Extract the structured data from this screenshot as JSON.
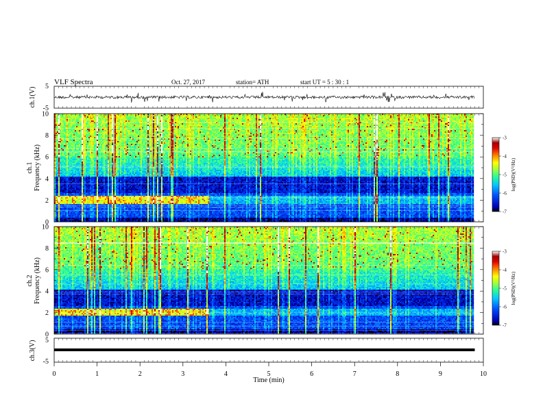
{
  "header": {
    "title": "VLF  Spectra",
    "date": "Oct. 27, 2017",
    "station": "station= ATH",
    "start": "start  UT  =   5  : 30 : 1"
  },
  "panels": {
    "ch1_wave": {
      "ylabel": "ch.1(V)",
      "yticks": [
        "5",
        "-5"
      ]
    },
    "ch1_spec": {
      "ylabel_line1": "ch.1",
      "ylabel_line2": "Frequency  (kHz)",
      "yticks": [
        "0",
        "2",
        "4",
        "6",
        "8",
        "10"
      ]
    },
    "ch2_spec": {
      "ylabel_line1": "ch.2",
      "ylabel_line2": "Frequency  (kHz)",
      "yticks": [
        "0",
        "2",
        "4",
        "6",
        "8",
        "10"
      ]
    },
    "ch3_wave": {
      "ylabel": "ch.3(V)",
      "yticks": [
        "5",
        "-5"
      ]
    }
  },
  "colorbar": {
    "label": "log(PSD)(V²/Hz)",
    "ticks": [
      "-3",
      "-4",
      "-5",
      "-6",
      "-7"
    ],
    "range": [
      -7,
      -3
    ],
    "colors": [
      "#000000",
      "#0000b4",
      "#0050ff",
      "#00c8ff",
      "#30ff90",
      "#b0ff30",
      "#ffff00",
      "#ff8000",
      "#e00000",
      "#a00000",
      "#ffffff"
    ]
  },
  "xaxis": {
    "label": "Time  (min)",
    "ticks": [
      "0",
      "1",
      "2",
      "3",
      "4",
      "5",
      "6",
      "7",
      "8",
      "9",
      "10"
    ]
  },
  "chart_data": [
    {
      "type": "line",
      "title": "VLF  Spectra",
      "ylabel": "ch.1(V)",
      "xlabel": "",
      "xlim": [
        0,
        10
      ],
      "ylim": [
        -5,
        5
      ],
      "data_extent_min": 9.8,
      "series": [
        {
          "values_description_x": [
            0,
            9.8
          ],
          "level": 0
        }
      ]
    },
    {
      "type": "heatmap",
      "ylabel": "ch.1 Frequency  (kHz)",
      "xlim": [
        0,
        10
      ],
      "ylim": [
        0,
        10
      ],
      "data_extent_min": 9.8,
      "color_range": [
        -7,
        -3
      ],
      "bright_band_khz": [
        1.7,
        2.4
      ],
      "dark_band_khz": [
        2.6,
        4.0
      ]
    },
    {
      "type": "heatmap",
      "ylabel": "ch.2 Frequency  (kHz)",
      "xlim": [
        0,
        10
      ],
      "ylim": [
        0,
        10
      ],
      "data_extent_min": 9.8,
      "color_range": [
        -7,
        -3
      ],
      "bright_band_khz": [
        1.7,
        2.4
      ],
      "dark_band_khz": [
        2.6,
        4.0
      ]
    },
    {
      "type": "line",
      "ylabel": "ch.3(V)",
      "xlabel": "Time  (min)",
      "xlim": [
        0,
        10
      ],
      "ylim": [
        -5,
        5
      ],
      "data_extent_min": 9.8,
      "series": [
        {
          "level": -1.1
        }
      ]
    }
  ]
}
